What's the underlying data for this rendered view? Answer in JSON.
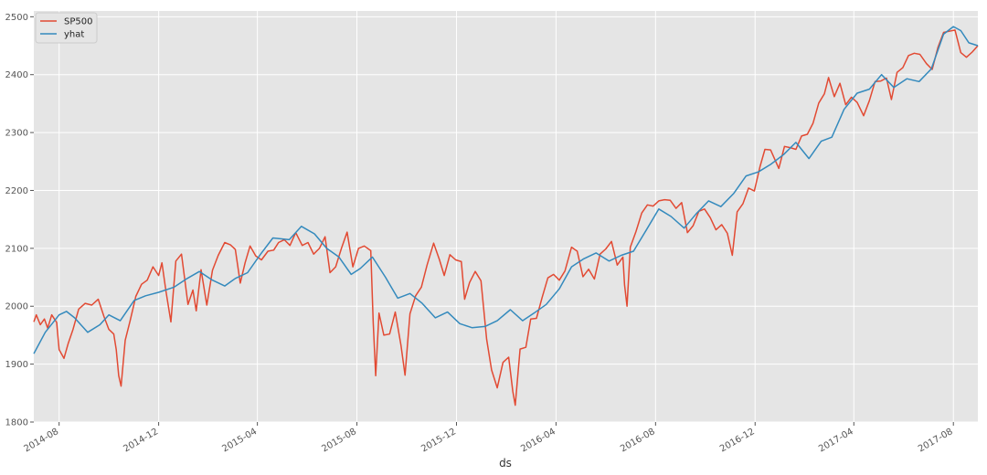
{
  "chart_data": {
    "type": "line",
    "xlabel": "ds",
    "ylabel": "",
    "xlim": [
      "2014-07-01",
      "2017-08-31"
    ],
    "ylim": [
      1800,
      2510
    ],
    "yticks": [
      1800,
      1900,
      2000,
      2100,
      2200,
      2300,
      2400,
      2500
    ],
    "xticks": [
      "2014-08",
      "2014-12",
      "2015-04",
      "2015-08",
      "2015-12",
      "2016-04",
      "2016-08",
      "2016-12",
      "2017-04",
      "2017-08"
    ],
    "grid": true,
    "legend_position": "top-left",
    "background": "#e5e5e5",
    "series": [
      {
        "name": "SP500",
        "color": "#e24a33",
        "points": [
          [
            "2014-07-01",
            1973
          ],
          [
            "2014-07-04",
            1985
          ],
          [
            "2014-07-09",
            1968
          ],
          [
            "2014-07-14",
            1978
          ],
          [
            "2014-07-18",
            1962
          ],
          [
            "2014-07-23",
            1985
          ],
          [
            "2014-07-29",
            1972
          ],
          [
            "2014-08-01",
            1925
          ],
          [
            "2014-08-07",
            1910
          ],
          [
            "2014-08-12",
            1935
          ],
          [
            "2014-08-18",
            1960
          ],
          [
            "2014-08-25",
            1995
          ],
          [
            "2014-09-02",
            2005
          ],
          [
            "2014-09-10",
            2002
          ],
          [
            "2014-09-18",
            2012
          ],
          [
            "2014-09-25",
            1982
          ],
          [
            "2014-10-01",
            1960
          ],
          [
            "2014-10-07",
            1952
          ],
          [
            "2014-10-10",
            1925
          ],
          [
            "2014-10-13",
            1880
          ],
          [
            "2014-10-16",
            1862
          ],
          [
            "2014-10-21",
            1941
          ],
          [
            "2014-10-27",
            1975
          ],
          [
            "2014-11-03",
            2017
          ],
          [
            "2014-11-10",
            2038
          ],
          [
            "2014-11-17",
            2045
          ],
          [
            "2014-11-24",
            2068
          ],
          [
            "2014-12-01",
            2053
          ],
          [
            "2014-12-05",
            2075
          ],
          [
            "2014-12-10",
            2026
          ],
          [
            "2014-12-16",
            1973
          ],
          [
            "2014-12-22",
            2078
          ],
          [
            "2014-12-29",
            2090
          ],
          [
            "2015-01-06",
            2003
          ],
          [
            "2015-01-12",
            2028
          ],
          [
            "2015-01-16",
            1992
          ],
          [
            "2015-01-22",
            2063
          ],
          [
            "2015-01-29",
            2002
          ],
          [
            "2015-02-05",
            2062
          ],
          [
            "2015-02-12",
            2088
          ],
          [
            "2015-02-20",
            2110
          ],
          [
            "2015-02-27",
            2106
          ],
          [
            "2015-03-05",
            2098
          ],
          [
            "2015-03-11",
            2040
          ],
          [
            "2015-03-17",
            2075
          ],
          [
            "2015-03-23",
            2104
          ],
          [
            "2015-03-30",
            2087
          ],
          [
            "2015-04-06",
            2080
          ],
          [
            "2015-04-14",
            2095
          ],
          [
            "2015-04-21",
            2097
          ],
          [
            "2015-04-27",
            2110
          ],
          [
            "2015-05-04",
            2115
          ],
          [
            "2015-05-11",
            2105
          ],
          [
            "2015-05-18",
            2127
          ],
          [
            "2015-05-26",
            2105
          ],
          [
            "2015-06-02",
            2110
          ],
          [
            "2015-06-09",
            2090
          ],
          [
            "2015-06-16",
            2100
          ],
          [
            "2015-06-23",
            2120
          ],
          [
            "2015-06-29",
            2058
          ],
          [
            "2015-07-06",
            2068
          ],
          [
            "2015-07-13",
            2100
          ],
          [
            "2015-07-20",
            2128
          ],
          [
            "2015-07-27",
            2068
          ],
          [
            "2015-08-03",
            2100
          ],
          [
            "2015-08-10",
            2104
          ],
          [
            "2015-08-18",
            2096
          ],
          [
            "2015-08-21",
            1971
          ],
          [
            "2015-08-24",
            1880
          ],
          [
            "2015-08-28",
            1988
          ],
          [
            "2015-09-03",
            1950
          ],
          [
            "2015-09-10",
            1952
          ],
          [
            "2015-09-17",
            1990
          ],
          [
            "2015-09-24",
            1932
          ],
          [
            "2015-09-29",
            1881
          ],
          [
            "2015-10-05",
            1987
          ],
          [
            "2015-10-12",
            2018
          ],
          [
            "2015-10-19",
            2033
          ],
          [
            "2015-10-26",
            2071
          ],
          [
            "2015-11-03",
            2109
          ],
          [
            "2015-11-10",
            2081
          ],
          [
            "2015-11-16",
            2053
          ],
          [
            "2015-11-23",
            2089
          ],
          [
            "2015-11-30",
            2080
          ],
          [
            "2015-12-07",
            2077
          ],
          [
            "2015-12-11",
            2012
          ],
          [
            "2015-12-17",
            2041
          ],
          [
            "2015-12-24",
            2060
          ],
          [
            "2015-12-31",
            2044
          ],
          [
            "2016-01-07",
            1943
          ],
          [
            "2016-01-13",
            1890
          ],
          [
            "2016-01-20",
            1859
          ],
          [
            "2016-01-27",
            1903
          ],
          [
            "2016-02-03",
            1912
          ],
          [
            "2016-02-08",
            1853
          ],
          [
            "2016-02-11",
            1829
          ],
          [
            "2016-02-17",
            1926
          ],
          [
            "2016-02-24",
            1929
          ],
          [
            "2016-03-01",
            1978
          ],
          [
            "2016-03-08",
            1979
          ],
          [
            "2016-03-15",
            2015
          ],
          [
            "2016-03-22",
            2049
          ],
          [
            "2016-03-29",
            2055
          ],
          [
            "2016-04-05",
            2045
          ],
          [
            "2016-04-12",
            2061
          ],
          [
            "2016-04-20",
            2102
          ],
          [
            "2016-04-27",
            2095
          ],
          [
            "2016-05-04",
            2051
          ],
          [
            "2016-05-11",
            2064
          ],
          [
            "2016-05-18",
            2047
          ],
          [
            "2016-05-25",
            2090
          ],
          [
            "2016-06-01",
            2099
          ],
          [
            "2016-06-08",
            2112
          ],
          [
            "2016-06-15",
            2071
          ],
          [
            "2016-06-22",
            2085
          ],
          [
            "2016-06-24",
            2037
          ],
          [
            "2016-06-27",
            2000
          ],
          [
            "2016-07-01",
            2102
          ],
          [
            "2016-07-08",
            2129
          ],
          [
            "2016-07-15",
            2161
          ],
          [
            "2016-07-22",
            2175
          ],
          [
            "2016-07-29",
            2173
          ],
          [
            "2016-08-05",
            2182
          ],
          [
            "2016-08-12",
            2184
          ],
          [
            "2016-08-19",
            2183
          ],
          [
            "2016-08-26",
            2169
          ],
          [
            "2016-09-02",
            2179
          ],
          [
            "2016-09-09",
            2127
          ],
          [
            "2016-09-16",
            2139
          ],
          [
            "2016-09-23",
            2164
          ],
          [
            "2016-09-30",
            2168
          ],
          [
            "2016-10-07",
            2153
          ],
          [
            "2016-10-14",
            2132
          ],
          [
            "2016-10-21",
            2141
          ],
          [
            "2016-10-28",
            2126
          ],
          [
            "2016-11-03",
            2088
          ],
          [
            "2016-11-09",
            2163
          ],
          [
            "2016-11-16",
            2177
          ],
          [
            "2016-11-23",
            2204
          ],
          [
            "2016-11-30",
            2199
          ],
          [
            "2016-12-07",
            2241
          ],
          [
            "2016-12-13",
            2271
          ],
          [
            "2016-12-20",
            2270
          ],
          [
            "2016-12-30",
            2238
          ],
          [
            "2017-01-06",
            2276
          ],
          [
            "2017-01-13",
            2274
          ],
          [
            "2017-01-20",
            2271
          ],
          [
            "2017-01-27",
            2294
          ],
          [
            "2017-02-03",
            2297
          ],
          [
            "2017-02-10",
            2316
          ],
          [
            "2017-02-17",
            2351
          ],
          [
            "2017-02-24",
            2367
          ],
          [
            "2017-03-01",
            2395
          ],
          [
            "2017-03-08",
            2362
          ],
          [
            "2017-03-15",
            2385
          ],
          [
            "2017-03-22",
            2348
          ],
          [
            "2017-03-29",
            2361
          ],
          [
            "2017-04-05",
            2352
          ],
          [
            "2017-04-13",
            2329
          ],
          [
            "2017-04-20",
            2355
          ],
          [
            "2017-04-27",
            2388
          ],
          [
            "2017-05-04",
            2389
          ],
          [
            "2017-05-11",
            2394
          ],
          [
            "2017-05-17",
            2357
          ],
          [
            "2017-05-24",
            2404
          ],
          [
            "2017-05-31",
            2412
          ],
          [
            "2017-06-07",
            2433
          ],
          [
            "2017-06-14",
            2437
          ],
          [
            "2017-06-21",
            2435
          ],
          [
            "2017-06-29",
            2419
          ],
          [
            "2017-07-06",
            2409
          ],
          [
            "2017-07-13",
            2447
          ],
          [
            "2017-07-20",
            2473
          ],
          [
            "2017-07-27",
            2475
          ],
          [
            "2017-08-03",
            2477
          ],
          [
            "2017-08-10",
            2438
          ],
          [
            "2017-08-17",
            2430
          ],
          [
            "2017-08-24",
            2439
          ],
          [
            "2017-08-31",
            2450
          ]
        ]
      },
      {
        "name": "yhat",
        "color": "#348abd",
        "points": [
          [
            "2014-07-01",
            1918
          ],
          [
            "2014-07-15",
            1955
          ],
          [
            "2014-08-01",
            1985
          ],
          [
            "2014-08-10",
            1991
          ],
          [
            "2014-08-20",
            1980
          ],
          [
            "2014-09-05",
            1955
          ],
          [
            "2014-09-20",
            1968
          ],
          [
            "2014-10-01",
            1985
          ],
          [
            "2014-10-15",
            1975
          ],
          [
            "2014-11-01",
            2010
          ],
          [
            "2014-11-15",
            2018
          ],
          [
            "2014-12-01",
            2024
          ],
          [
            "2014-12-20",
            2033
          ],
          [
            "2015-01-05",
            2048
          ],
          [
            "2015-01-20",
            2060
          ],
          [
            "2015-02-05",
            2045
          ],
          [
            "2015-02-20",
            2035
          ],
          [
            "2015-03-05",
            2048
          ],
          [
            "2015-03-20",
            2058
          ],
          [
            "2015-04-05",
            2090
          ],
          [
            "2015-04-20",
            2118
          ],
          [
            "2015-05-10",
            2115
          ],
          [
            "2015-05-25",
            2138
          ],
          [
            "2015-06-10",
            2125
          ],
          [
            "2015-06-25",
            2100
          ],
          [
            "2015-07-10",
            2085
          ],
          [
            "2015-07-25",
            2055
          ],
          [
            "2015-08-05",
            2065
          ],
          [
            "2015-08-20",
            2085
          ],
          [
            "2015-09-05",
            2050
          ],
          [
            "2015-09-20",
            2014
          ],
          [
            "2015-10-05",
            2022
          ],
          [
            "2015-10-20",
            2005
          ],
          [
            "2015-11-05",
            1980
          ],
          [
            "2015-11-20",
            1990
          ],
          [
            "2015-12-05",
            1970
          ],
          [
            "2015-12-20",
            1963
          ],
          [
            "2016-01-05",
            1965
          ],
          [
            "2016-01-20",
            1975
          ],
          [
            "2016-02-05",
            1994
          ],
          [
            "2016-02-20",
            1975
          ],
          [
            "2016-03-05",
            1988
          ],
          [
            "2016-03-20",
            2003
          ],
          [
            "2016-04-05",
            2030
          ],
          [
            "2016-04-20",
            2068
          ],
          [
            "2016-05-05",
            2082
          ],
          [
            "2016-05-20",
            2092
          ],
          [
            "2016-06-05",
            2078
          ],
          [
            "2016-06-20",
            2088
          ],
          [
            "2016-07-05",
            2095
          ],
          [
            "2016-07-20",
            2130
          ],
          [
            "2016-08-05",
            2168
          ],
          [
            "2016-08-20",
            2155
          ],
          [
            "2016-09-05",
            2135
          ],
          [
            "2016-09-20",
            2160
          ],
          [
            "2016-10-05",
            2182
          ],
          [
            "2016-10-20",
            2172
          ],
          [
            "2016-11-05",
            2195
          ],
          [
            "2016-11-20",
            2225
          ],
          [
            "2016-12-05",
            2232
          ],
          [
            "2016-12-20",
            2245
          ],
          [
            "2017-01-05",
            2262
          ],
          [
            "2017-01-20",
            2283
          ],
          [
            "2017-02-05",
            2255
          ],
          [
            "2017-02-20",
            2285
          ],
          [
            "2017-03-05",
            2292
          ],
          [
            "2017-03-20",
            2340
          ],
          [
            "2017-04-05",
            2368
          ],
          [
            "2017-04-20",
            2375
          ],
          [
            "2017-05-05",
            2400
          ],
          [
            "2017-05-20",
            2378
          ],
          [
            "2017-06-05",
            2393
          ],
          [
            "2017-06-20",
            2388
          ],
          [
            "2017-07-05",
            2410
          ],
          [
            "2017-07-20",
            2470
          ],
          [
            "2017-08-01",
            2483
          ],
          [
            "2017-08-10",
            2476
          ],
          [
            "2017-08-20",
            2455
          ],
          [
            "2017-08-31",
            2450
          ]
        ]
      }
    ]
  }
}
